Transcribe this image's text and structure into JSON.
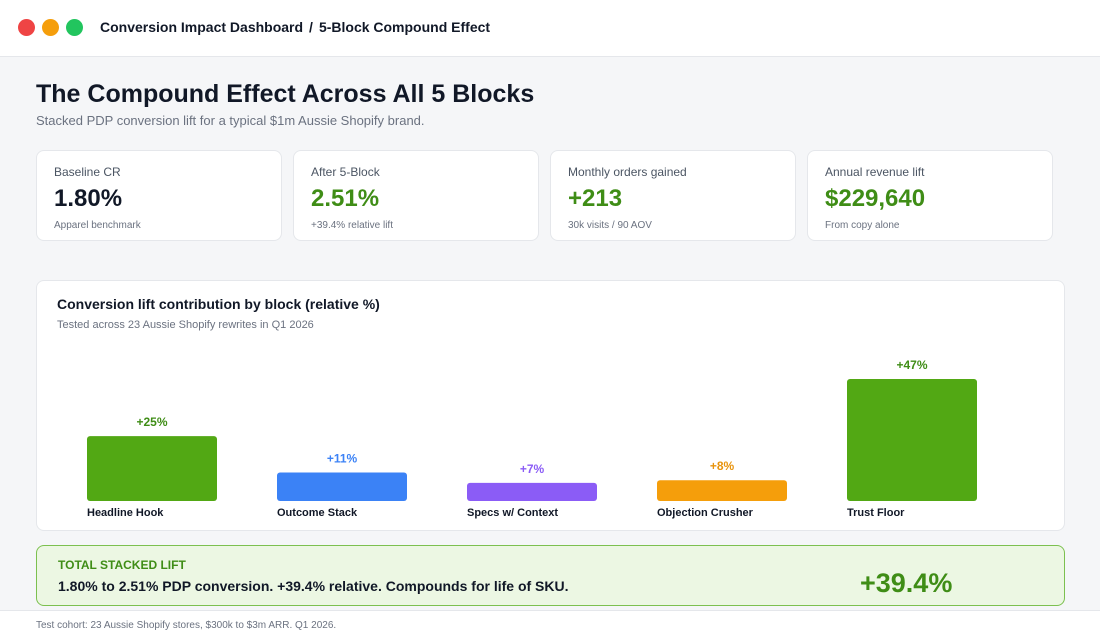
{
  "window": {
    "breadcrumb": [
      "Conversion Impact Dashboard",
      "5-Block Compound Effect"
    ],
    "breadcrumb_separator": "/"
  },
  "header": {
    "title": "The Compound Effect Across All 5 Blocks",
    "subtitle": "Stacked PDP conversion lift for a typical $1m Aussie Shopify brand."
  },
  "kpis": [
    {
      "label": "Baseline CR",
      "value": "1.80%",
      "note": "Apparel benchmark"
    },
    {
      "label": "After 5-Block",
      "value": "2.51%",
      "note": "+39.4% relative lift"
    },
    {
      "label": "Monthly orders gained",
      "value": "+213",
      "note": "30k visits / 90 AOV"
    },
    {
      "label": "Annual revenue lift",
      "value": "$229,640",
      "note": "From copy alone"
    }
  ],
  "chart": {
    "title": "Conversion lift contribution by block (relative %)",
    "subtitle": "Tested across 23 Aussie Shopify rewrites in Q1 2026"
  },
  "chart_data": {
    "type": "bar",
    "title": "Conversion lift contribution by block (relative %)",
    "subtitle": "Tested across 23 Aussie Shopify rewrites in Q1 2026",
    "categories": [
      "Headline Hook",
      "Outcome Stack",
      "Specs w/ Context",
      "Objection Crusher",
      "Trust Floor"
    ],
    "values": [
      25,
      11,
      7,
      8,
      47
    ],
    "labels": [
      "+25%",
      "+11%",
      "+7%",
      "+8%",
      "+47%"
    ],
    "colors": [
      "#52a814",
      "#3b82f6",
      "#8b5cf6",
      "#f59e0b",
      "#52a814"
    ],
    "label_colors": [
      "#3f8d16",
      "#3b82f6",
      "#8b5cf6",
      "#e8930c",
      "#3f8d16"
    ],
    "ylim": [
      0,
      47
    ],
    "grid": false,
    "xlabel": "",
    "ylabel": ""
  },
  "total": {
    "label": "TOTAL STACKED LIFT",
    "text": "1.80% to 2.51% PDP conversion. +39.4% relative. Compounds for life of SKU.",
    "value": "+39.4%"
  },
  "footer": {
    "text": "Test cohort: 23 Aussie Shopify stores, $300k to $3m ARR. Q1 2026."
  },
  "colors": {
    "accent_green": "#3f8d16",
    "bar_green": "#52a814",
    "total_bg": "#ecf7e3"
  }
}
